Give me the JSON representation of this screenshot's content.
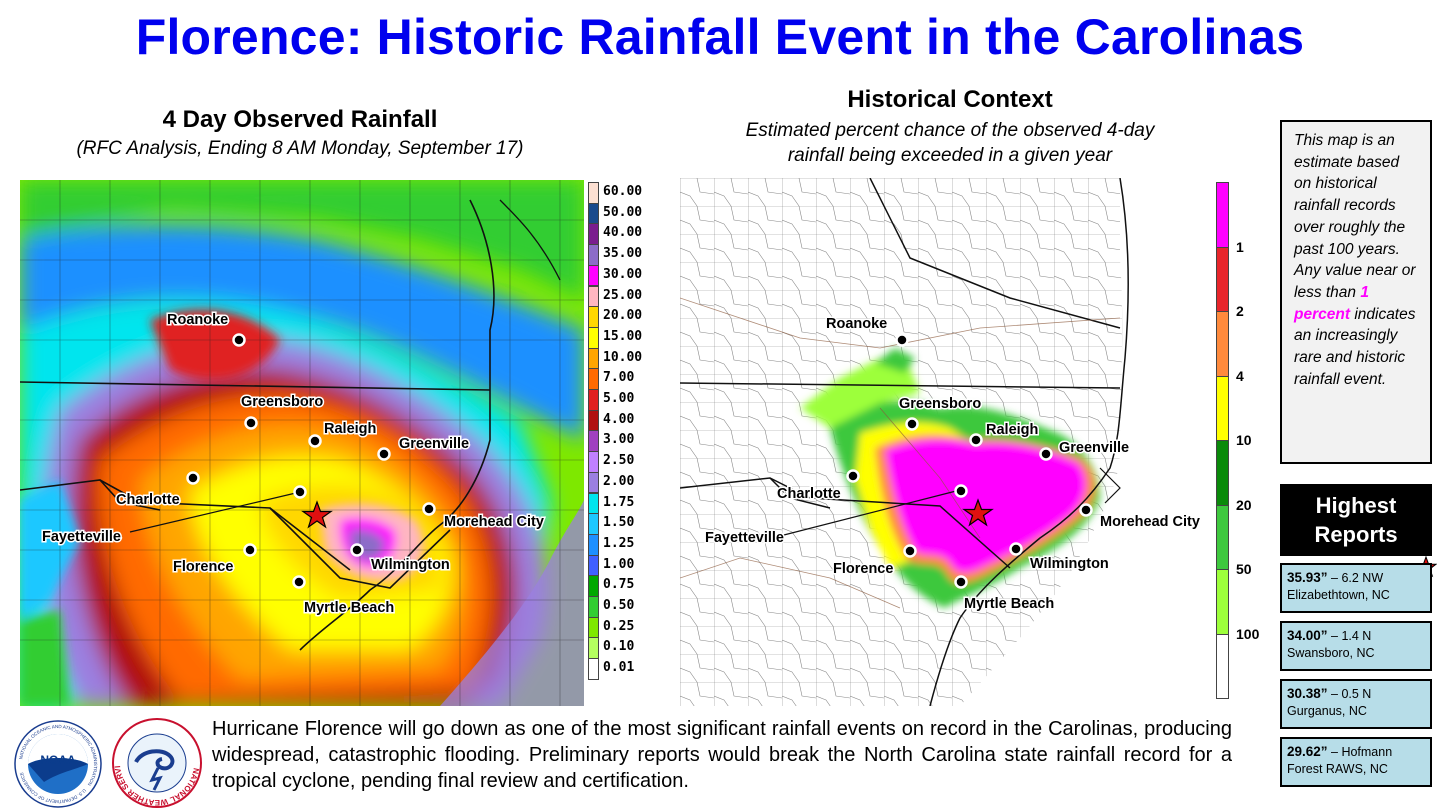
{
  "title": "Florence: Historic Rainfall Event in the Carolinas",
  "left_panel": {
    "title": "4 Day Observed Rainfall",
    "subtitle": "(RFC Analysis, Ending 8 AM Monday, September 17)",
    "legend": [
      {
        "label": "60.00",
        "color": "#fde0d2"
      },
      {
        "label": "50.00",
        "color": "#1a4a8c"
      },
      {
        "label": "40.00",
        "color": "#7a1d8e"
      },
      {
        "label": "35.00",
        "color": "#8c6cc8"
      },
      {
        "label": "30.00",
        "color": "#ff00ff"
      },
      {
        "label": "25.00",
        "color": "#ffb6c1"
      },
      {
        "label": "20.00",
        "color": "#ffd700"
      },
      {
        "label": "15.00",
        "color": "#ffff00"
      },
      {
        "label": "10.00",
        "color": "#ffa500"
      },
      {
        "label": "7.00",
        "color": "#ff6a00"
      },
      {
        "label": "5.00",
        "color": "#e02020"
      },
      {
        "label": "4.00",
        "color": "#b01010"
      },
      {
        "label": "3.00",
        "color": "#a040c0"
      },
      {
        "label": "2.50",
        "color": "#c080ff"
      },
      {
        "label": "2.00",
        "color": "#9b7fe0"
      },
      {
        "label": "1.75",
        "color": "#00e5ee"
      },
      {
        "label": "1.50",
        "color": "#1ec8ff"
      },
      {
        "label": "1.25",
        "color": "#1e90ff"
      },
      {
        "label": "1.00",
        "color": "#4060ff"
      },
      {
        "label": "0.75",
        "color": "#00a800"
      },
      {
        "label": "0.50",
        "color": "#32cd32"
      },
      {
        "label": "0.25",
        "color": "#7ee800"
      },
      {
        "label": "0.10",
        "color": "#b4ff60"
      },
      {
        "label": "0.01",
        "color": "#ffffff"
      }
    ],
    "cities": [
      "Roanoke",
      "Greensboro",
      "Raleigh",
      "Greenville",
      "Charlotte",
      "Morehead City",
      "Fayetteville",
      "Florence",
      "Wilmington",
      "Myrtle Beach"
    ]
  },
  "right_panel": {
    "title": "Historical Context",
    "subtitle_line1": "Estimated percent chance of the observed 4-day",
    "subtitle_line2": "rainfall being exceeded in a given year",
    "legend": [
      {
        "label": "1",
        "color": "#ff00ff"
      },
      {
        "label": "2",
        "color": "#e8262b"
      },
      {
        "label": "4",
        "color": "#ff8a3c"
      },
      {
        "label": "10",
        "color": "#ffff00"
      },
      {
        "label": "20",
        "color": "#0a8a0a"
      },
      {
        "label": "50",
        "color": "#3ec83e"
      },
      {
        "label": "100",
        "color": "#9dff3b"
      },
      {
        "label": "",
        "color": "#ffffff"
      }
    ],
    "cities": [
      "Roanoke",
      "Greensboro",
      "Raleigh",
      "Greenville",
      "Charlotte",
      "Morehead City",
      "Fayetteville",
      "Florence",
      "Wilmington",
      "Myrtle Beach"
    ]
  },
  "info_box": {
    "text_before": "This map is an estimate based on historical rainfall records over roughly the past 100 years. Any value near or less than",
    "highlight": "1 percent",
    "text_after": "indicates an increasingly rare and historic rainfall event."
  },
  "reports": {
    "heading_line1": "Highest",
    "heading_line2": "Reports",
    "items": [
      {
        "amount": "35.93”",
        "detail": " – 6.2 NW",
        "place": "Elizabethtown, NC"
      },
      {
        "amount": "34.00”",
        "detail": " – 1.4 N",
        "place": "Swansboro, NC"
      },
      {
        "amount": "30.38”",
        "detail": " – 0.5 N",
        "place": "Gurganus, NC"
      },
      {
        "amount": "29.62”",
        "detail": " – Hofmann",
        "place": "Forest RAWS, NC"
      }
    ]
  },
  "caption": "Hurricane Florence will go down as one of the most significant rainfall events on record in the Carolinas, producing widespread, catastrophic flooding. Preliminary reports would break the North Carolina state rainfall record for a tropical cyclone, pending final review and certification.",
  "logos": {
    "noaa": "NOAA",
    "noaa_ring": "NATIONAL OCEANIC AND ATMOSPHERIC ADMINISTRATION",
    "noaa_ring_bottom": "U.S. DEPARTMENT OF COMMERCE",
    "nws_ring": "NATIONAL WEATHER SERVICE"
  }
}
